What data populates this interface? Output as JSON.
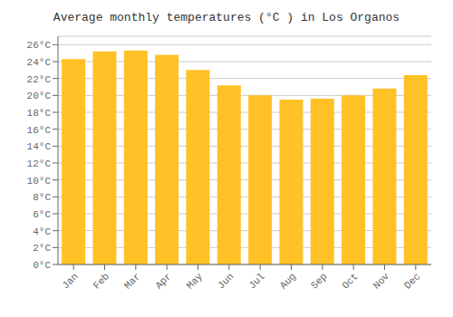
{
  "chart_data": {
    "type": "bar",
    "title": "Average monthly temperatures (°C ) in Los Organos",
    "categories": [
      "Jan",
      "Feb",
      "Mar",
      "Apr",
      "May",
      "Jun",
      "Jul",
      "Aug",
      "Sep",
      "Oct",
      "Nov",
      "Dec"
    ],
    "values": [
      24.3,
      25.2,
      25.3,
      24.8,
      23.0,
      21.2,
      20.0,
      19.5,
      19.6,
      20.0,
      20.8,
      22.4
    ],
    "color": "#FFC125",
    "ylim": [
      0,
      27
    ],
    "yticks": [
      {
        "value": 0,
        "label": "0°C"
      },
      {
        "value": 2,
        "label": "2°C"
      },
      {
        "value": 4,
        "label": "4°C"
      },
      {
        "value": 6,
        "label": "6°C"
      },
      {
        "value": 8,
        "label": "8°C"
      },
      {
        "value": 10,
        "label": "10°C"
      },
      {
        "value": 12,
        "label": "12°C"
      },
      {
        "value": 14,
        "label": "14°C"
      },
      {
        "value": 16,
        "label": "16°C"
      },
      {
        "value": 18,
        "label": "18°C"
      },
      {
        "value": 20,
        "label": "20°C"
      },
      {
        "value": 22,
        "label": "22°C"
      },
      {
        "value": 24,
        "label": "24°C"
      },
      {
        "value": 26,
        "label": "26°C"
      }
    ],
    "grid": true
  }
}
